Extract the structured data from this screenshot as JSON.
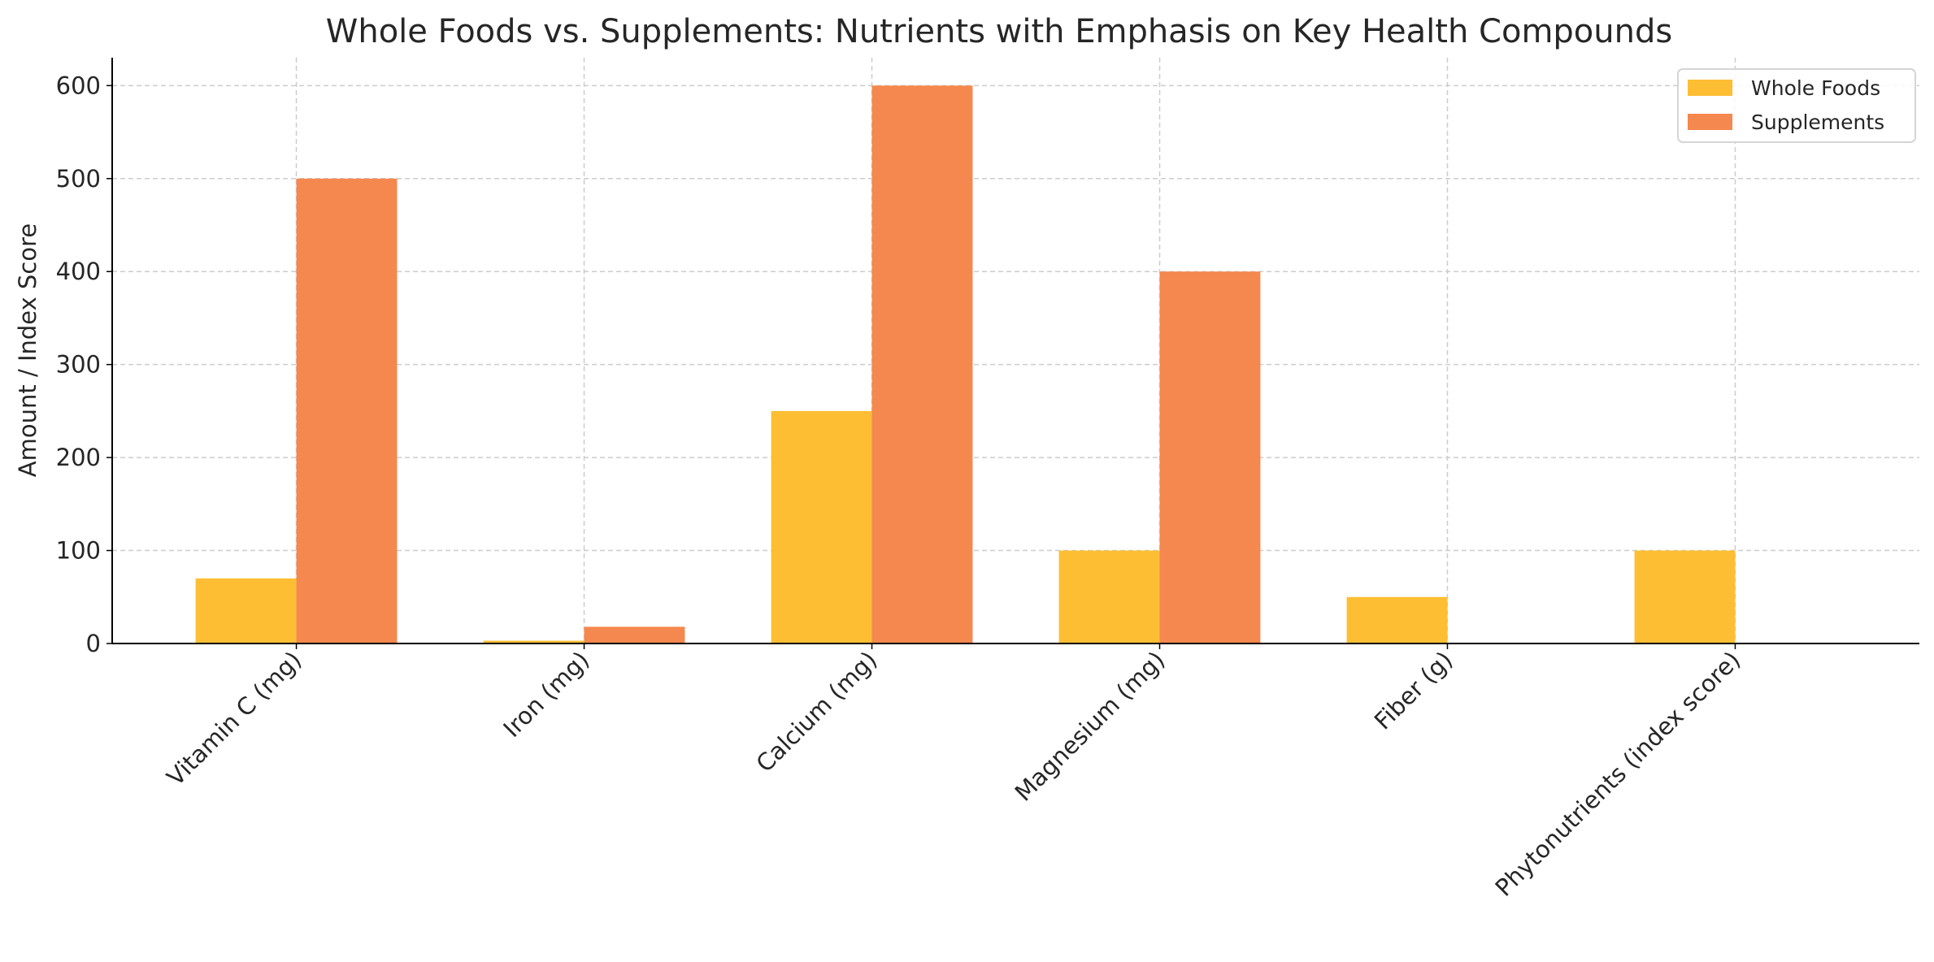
{
  "chart_data": {
    "type": "bar",
    "title": "Whole Foods vs. Supplements: Nutrients with Emphasis on Key Health Compounds",
    "xlabel": "",
    "ylabel": "Amount / Index Score",
    "categories": [
      "Vitamin C (mg)",
      "Iron (mg)",
      "Calcium (mg)",
      "Magnesium (mg)",
      "Fiber (g)",
      "Phytonutrients (index score)"
    ],
    "series": [
      {
        "name": "Whole Foods",
        "values": [
          70,
          3,
          250,
          100,
          50,
          100
        ],
        "color": "#FDBE34"
      },
      {
        "name": "Supplements",
        "values": [
          500,
          18,
          600,
          400,
          0,
          0
        ],
        "color": "#F5884E"
      }
    ],
    "ylim": [
      0,
      630
    ],
    "yticks": [
      "0",
      "100",
      "200",
      "300",
      "400",
      "500",
      "600"
    ],
    "grid": true,
    "legend": "top-right"
  }
}
